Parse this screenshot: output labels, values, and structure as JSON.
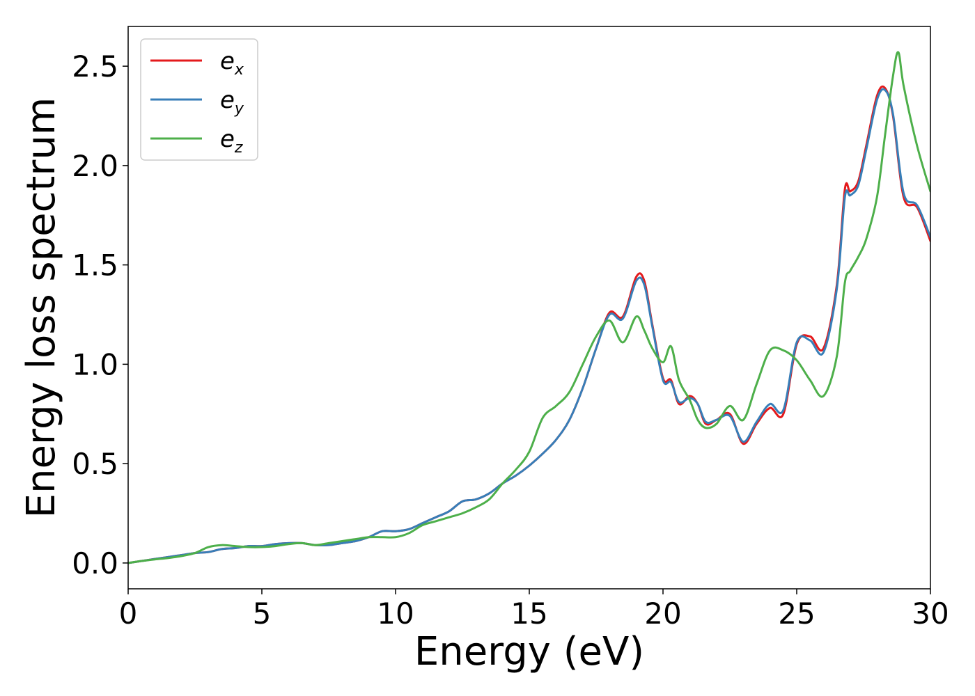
{
  "chart_data": {
    "type": "line",
    "title": "",
    "xlabel": "Energy (eV)",
    "ylabel": "Energy loss spectrum",
    "xlim": [
      0,
      30
    ],
    "ylim": [
      -0.13,
      2.7
    ],
    "xticks": [
      0,
      5,
      10,
      15,
      20,
      25,
      30
    ],
    "yticks": [
      0.0,
      0.5,
      1.0,
      1.5,
      2.0,
      2.5
    ],
    "xtick_labels": [
      "0",
      "5",
      "10",
      "15",
      "20",
      "25",
      "30"
    ],
    "ytick_labels": [
      "0.0",
      "0.5",
      "1.0",
      "1.5",
      "2.0",
      "2.5"
    ],
    "grid": false,
    "legend_position": "top-left",
    "series": [
      {
        "name": "e",
        "subscript": "x",
        "color": "#e41a1c",
        "x": [
          0,
          0.5,
          1,
          1.5,
          2,
          2.5,
          3,
          3.5,
          4,
          4.5,
          5,
          5.5,
          6,
          6.5,
          7,
          7.5,
          8,
          8.5,
          9,
          9.5,
          10,
          10.5,
          11,
          11.5,
          12,
          12.5,
          13,
          13.5,
          14,
          14.5,
          15,
          15.5,
          16,
          16.5,
          17,
          17.5,
          18,
          18.5,
          19,
          19.3,
          19.6,
          20,
          20.3,
          20.6,
          21,
          21.3,
          21.6,
          22,
          22.5,
          23,
          23.5,
          24,
          24.5,
          25,
          25.5,
          26,
          26.5,
          26.8,
          27,
          27.3,
          27.6,
          28,
          28.3,
          28.6,
          29,
          29.5,
          30
        ],
        "y": [
          0.0,
          0.01,
          0.02,
          0.03,
          0.04,
          0.05,
          0.055,
          0.07,
          0.075,
          0.085,
          0.085,
          0.095,
          0.1,
          0.1,
          0.09,
          0.09,
          0.1,
          0.11,
          0.13,
          0.16,
          0.16,
          0.17,
          0.2,
          0.23,
          0.26,
          0.31,
          0.32,
          0.35,
          0.4,
          0.44,
          0.49,
          0.55,
          0.62,
          0.72,
          0.88,
          1.08,
          1.26,
          1.24,
          1.44,
          1.42,
          1.2,
          0.93,
          0.92,
          0.8,
          0.84,
          0.8,
          0.7,
          0.72,
          0.75,
          0.6,
          0.7,
          0.78,
          0.75,
          1.1,
          1.14,
          1.08,
          1.4,
          1.88,
          1.87,
          1.92,
          2.1,
          2.35,
          2.39,
          2.25,
          1.84,
          1.79,
          1.62
        ]
      },
      {
        "name": "e",
        "subscript": "y",
        "color": "#377eb8",
        "x": [
          0,
          0.5,
          1,
          1.5,
          2,
          2.5,
          3,
          3.5,
          4,
          4.5,
          5,
          5.5,
          6,
          6.5,
          7,
          7.5,
          8,
          8.5,
          9,
          9.5,
          10,
          10.5,
          11,
          11.5,
          12,
          12.5,
          13,
          13.5,
          14,
          14.5,
          15,
          15.5,
          16,
          16.5,
          17,
          17.5,
          18,
          18.5,
          19,
          19.3,
          19.6,
          20,
          20.3,
          20.6,
          21,
          21.3,
          21.6,
          22,
          22.5,
          23,
          23.5,
          24,
          24.5,
          25,
          25.5,
          26,
          26.5,
          26.8,
          27,
          27.3,
          27.6,
          28,
          28.3,
          28.6,
          29,
          29.5,
          30
        ],
        "y": [
          0.0,
          0.01,
          0.02,
          0.03,
          0.04,
          0.05,
          0.055,
          0.07,
          0.075,
          0.085,
          0.085,
          0.095,
          0.1,
          0.1,
          0.09,
          0.09,
          0.1,
          0.11,
          0.13,
          0.16,
          0.16,
          0.17,
          0.2,
          0.23,
          0.26,
          0.31,
          0.32,
          0.35,
          0.4,
          0.44,
          0.49,
          0.55,
          0.62,
          0.72,
          0.88,
          1.08,
          1.25,
          1.23,
          1.42,
          1.4,
          1.19,
          0.92,
          0.91,
          0.81,
          0.83,
          0.8,
          0.71,
          0.72,
          0.74,
          0.61,
          0.71,
          0.8,
          0.77,
          1.11,
          1.12,
          1.06,
          1.38,
          1.84,
          1.85,
          1.9,
          2.08,
          2.33,
          2.38,
          2.26,
          1.86,
          1.8,
          1.64
        ]
      },
      {
        "name": "e",
        "subscript": "z",
        "color": "#4daf4a",
        "x": [
          0,
          0.5,
          1,
          1.5,
          2,
          2.5,
          3,
          3.5,
          4,
          4.5,
          5,
          5.5,
          6,
          6.5,
          7,
          7.5,
          8,
          8.5,
          9,
          9.5,
          10,
          10.5,
          11,
          11.5,
          12,
          12.5,
          13,
          13.5,
          14,
          14.5,
          15,
          15.5,
          16,
          16.5,
          17,
          17.5,
          18,
          18.5,
          19,
          19.3,
          19.6,
          20,
          20.3,
          20.6,
          21,
          21.3,
          21.6,
          22,
          22.5,
          23,
          23.5,
          24,
          24.5,
          25,
          25.5,
          26,
          26.5,
          26.8,
          27,
          27.3,
          27.6,
          28,
          28.3,
          28.6,
          28.8,
          29,
          29.5,
          30
        ],
        "y": [
          0.0,
          0.01,
          0.018,
          0.025,
          0.035,
          0.05,
          0.08,
          0.09,
          0.085,
          0.08,
          0.08,
          0.085,
          0.095,
          0.1,
          0.09,
          0.1,
          0.11,
          0.12,
          0.13,
          0.13,
          0.13,
          0.15,
          0.19,
          0.21,
          0.23,
          0.25,
          0.28,
          0.32,
          0.4,
          0.47,
          0.56,
          0.73,
          0.79,
          0.86,
          1.0,
          1.14,
          1.22,
          1.11,
          1.24,
          1.17,
          1.08,
          1.01,
          1.09,
          0.92,
          0.82,
          0.72,
          0.68,
          0.7,
          0.79,
          0.72,
          0.9,
          1.07,
          1.07,
          1.02,
          0.92,
          0.84,
          1.04,
          1.41,
          1.47,
          1.54,
          1.63,
          1.84,
          2.15,
          2.45,
          2.57,
          2.4,
          2.1,
          1.87
        ]
      }
    ]
  }
}
